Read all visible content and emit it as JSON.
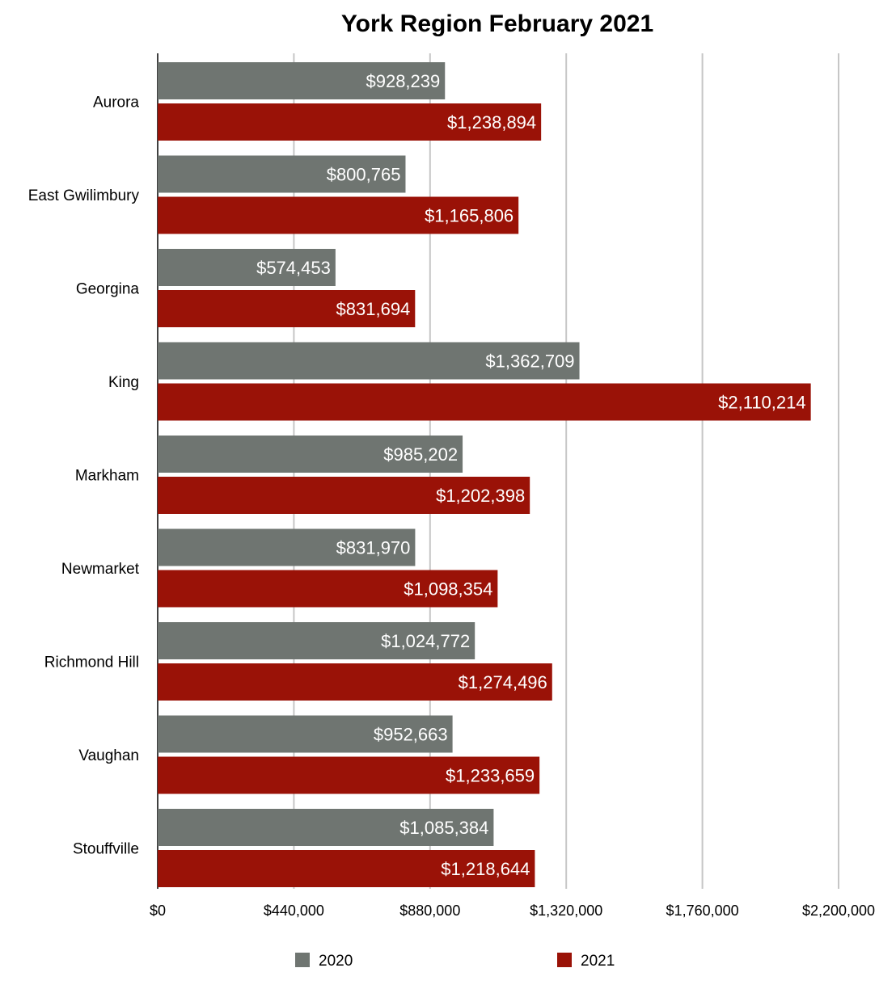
{
  "chart_data": {
    "type": "bar",
    "orientation": "horizontal",
    "title": "York Region February 2021",
    "xlabel": "",
    "ylabel": "",
    "categories": [
      "Aurora",
      "East Gwilimbury",
      "Georgina",
      "King",
      "Markham",
      "Newmarket",
      "Richmond Hill",
      "Vaughan",
      "Stouffville"
    ],
    "series": [
      {
        "name": "2020",
        "color": "#6f7571",
        "values": [
          928239,
          800765,
          574453,
          1362709,
          985202,
          831970,
          1024772,
          952663,
          1085384
        ],
        "labels": [
          "$928,239",
          "$800,765",
          "$574,453",
          "$1,362,709",
          "$985,202",
          "$831,970",
          "$1,024,772",
          "$952,663",
          "$1,085,384"
        ]
      },
      {
        "name": "2021",
        "color": "#9a1207",
        "values": [
          1238894,
          1165806,
          831694,
          2110214,
          1202398,
          1098354,
          1274496,
          1233659,
          1218644
        ],
        "labels": [
          "$1,238,894",
          "$1,165,806",
          "$831,694",
          "$2,110,214",
          "$1,202,398",
          "$1,098,354",
          "$1,274,496",
          "$1,233,659",
          "$1,218,644"
        ]
      }
    ],
    "xlim": [
      0,
      2200000
    ],
    "xticks": [
      0,
      440000,
      880000,
      1320000,
      1760000,
      2200000
    ],
    "xtick_labels": [
      "$0",
      "$440,000",
      "$880,000",
      "$1,320,000",
      "$1,760,000",
      "$2,200,000"
    ],
    "grid": true,
    "legend_position": "bottom"
  }
}
